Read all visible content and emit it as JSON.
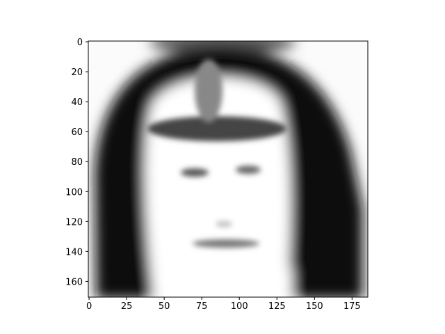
{
  "chart_data": {
    "type": "image",
    "xlim": [
      -0.5,
      185.5
    ],
    "ylim": [
      170.5,
      -0.5
    ],
    "xticks": [
      0,
      25,
      50,
      75,
      100,
      125,
      150,
      175
    ],
    "yticks": [
      0,
      20,
      40,
      60,
      80,
      100,
      120,
      140,
      160
    ]
  }
}
